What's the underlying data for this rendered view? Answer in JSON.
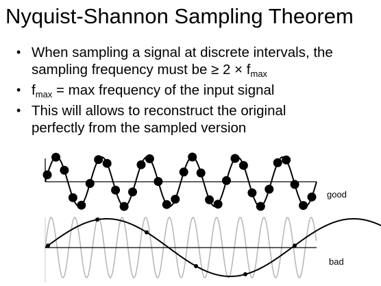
{
  "slide": {
    "title": "Nyquist-Shannon Sampling Theorem",
    "bullets": [
      {
        "line1": "When sampling a signal at discrete intervals, the",
        "line2_prefix": "sampling frequency must be ≥ 2 × f",
        "line2_sub": "max"
      },
      {
        "prefix": "f",
        "sub": "max",
        "suffix": " = max frequency of the input signal"
      },
      {
        "line1": "This will allows to reconstruct the original",
        "line2": "perfectly from the sampled version"
      }
    ],
    "bullet_symbol": "•"
  },
  "figure": {
    "good_label": "good",
    "bad_label": "bad",
    "signal_color": "#000000",
    "alias_bg_color": "#b8b8b8",
    "sample_color": "#000000"
  }
}
